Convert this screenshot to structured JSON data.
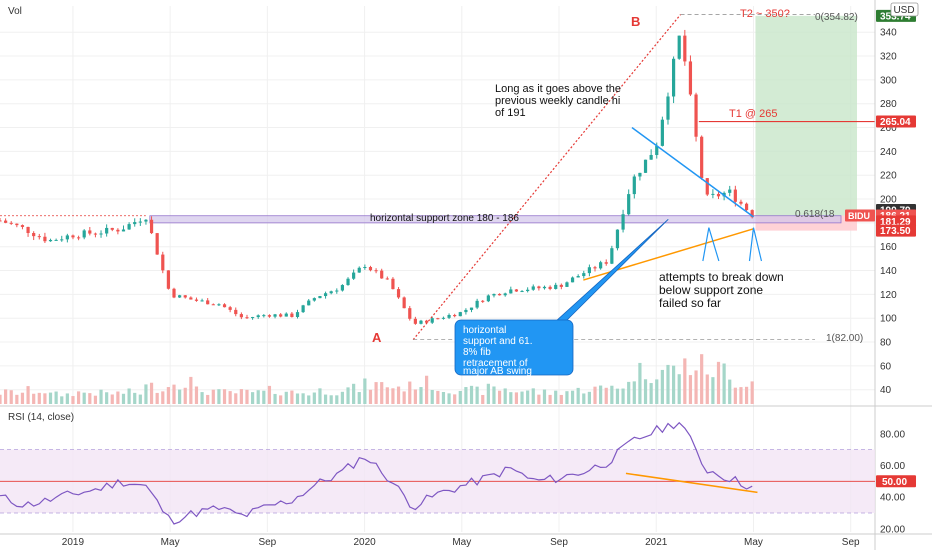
{
  "header": {
    "vol_label": "Vol",
    "currency_badge": "USD"
  },
  "colors": {
    "up": "#26a69a",
    "down": "#ef5350",
    "rsi": "#7e57c2",
    "rsi_band": "#f3e5f5",
    "target_zone": "#c8e6c9",
    "stop_zone": "#ffcdd2",
    "trend": "#2196f3",
    "orange": "#ff9800",
    "support_zone": "#d1c4e9",
    "red_line": "#e53935",
    "symbol_tag": "#ef5350",
    "price_tag": "#333333",
    "callout_bg": "#2196f3"
  },
  "chart_data": [
    {
      "type": "candlestick",
      "symbol": "BIDU",
      "x_axis": {
        "tick_labels": [
          "2019",
          "May",
          "Sep",
          "2020",
          "May",
          "Sep",
          "2021",
          "May",
          "Sep"
        ],
        "tick_dates": [
          "2019-01",
          "2019-05",
          "2019-09",
          "2020-01",
          "2020-05",
          "2020-09",
          "2021-01",
          "2021-05",
          "2021-09"
        ],
        "range": [
          "2018-10",
          "2021-10"
        ]
      },
      "y_axis": {
        "ticks": [
          40,
          60,
          80,
          100,
          120,
          140,
          160,
          180,
          200,
          220,
          240,
          260,
          280,
          300,
          320,
          340
        ],
        "ylim": [
          28,
          362
        ]
      },
      "price_path": [
        [
          "2018-10",
          182
        ],
        [
          "2018-11",
          175
        ],
        [
          "2018-12",
          165
        ],
        [
          "2019-01",
          170
        ],
        [
          "2019-02",
          172
        ],
        [
          "2019-03",
          175
        ],
        [
          "2019-04",
          186
        ],
        [
          "2019-05",
          120
        ],
        [
          "2019-06",
          115
        ],
        [
          "2019-07",
          112
        ],
        [
          "2019-08",
          100
        ],
        [
          "2019-09",
          103
        ],
        [
          "2019-10",
          102
        ],
        [
          "2019-11",
          118
        ],
        [
          "2019-12",
          126
        ],
        [
          "2020-01",
          145
        ],
        [
          "2020-02",
          130
        ],
        [
          "2020-03",
          95
        ],
        [
          "2020-04",
          100
        ],
        [
          "2020-05",
          105
        ],
        [
          "2020-06",
          118
        ],
        [
          "2020-07",
          124
        ],
        [
          "2020-08",
          125
        ],
        [
          "2020-09",
          127
        ],
        [
          "2020-10",
          138
        ],
        [
          "2020-11",
          148
        ],
        [
          "2020-12",
          215
        ],
        [
          "2021-01",
          245
        ],
        [
          "2021-02",
          340
        ],
        [
          "2021-03",
          200
        ],
        [
          "2021-04",
          206
        ],
        [
          "2021-05",
          186
        ]
      ],
      "volume_relative": [
        0.3,
        0.35,
        0.25,
        0.3,
        0.28,
        0.3,
        0.45,
        0.6,
        0.35,
        0.3,
        0.3,
        0.35,
        0.3,
        0.35,
        0.4,
        0.5,
        0.45,
        0.55,
        0.4,
        0.35,
        0.4,
        0.35,
        0.3,
        0.35,
        0.4,
        0.5,
        0.85,
        0.9,
        1.0,
        0.9,
        0.6,
        0.5
      ],
      "price_tags": [
        {
          "label": "353.74",
          "price": 353.74,
          "color": "#2e7d32"
        },
        {
          "label": "265.04",
          "price": 265.04,
          "color": "#e53935"
        },
        {
          "label": "190.79",
          "price": 190.79,
          "color": "#333333"
        },
        {
          "label": "186.22",
          "price": 186.22,
          "color": "#e53935"
        },
        {
          "label": "186.21",
          "price": 186.21,
          "color": "#ef5350"
        },
        {
          "label": "181.29",
          "price": 181.29,
          "color": "#e53935"
        },
        {
          "label": "173.50",
          "price": 173.5,
          "color": "#e53935"
        }
      ],
      "symbol_tag": "BIDU",
      "levels": [
        {
          "label": "0(354.82)",
          "price": 354.82
        },
        {
          "label": "0.618(18",
          "price": 186.21
        },
        {
          "label": "1(82.00)",
          "price": 82.0
        }
      ],
      "annotations": {
        "point_a": "A",
        "point_b": "B",
        "t2": "T2  ~ 350?",
        "t1": "T1 @ 265",
        "note_top": [
          "Long as it goes above the",
          "previous weekly candle hi",
          "of 191"
        ],
        "support_zone": "horizontal support zone 180 - 186",
        "note_bottom": [
          "attempts to break down",
          "below support zone",
          "failed so far"
        ],
        "callout": [
          "horizontal",
          "support and 61.",
          "8% fib",
          "retracement of",
          "major AB swing"
        ]
      }
    },
    {
      "type": "line",
      "title": "RSI (14, close)",
      "y_axis": {
        "ticks": [
          20,
          40,
          60,
          80
        ],
        "ylim": [
          18,
          95
        ]
      },
      "bands": [
        30,
        70
      ],
      "current_label": "50.00",
      "current": 50,
      "rsi_path": [
        [
          "2018-10",
          40
        ],
        [
          "2018-11",
          35
        ],
        [
          "2018-12",
          38
        ],
        [
          "2019-01",
          42
        ],
        [
          "2019-02",
          45
        ],
        [
          "2019-03",
          50
        ],
        [
          "2019-04",
          47
        ],
        [
          "2019-05",
          25
        ],
        [
          "2019-06",
          30
        ],
        [
          "2019-07",
          33
        ],
        [
          "2019-08",
          28
        ],
        [
          "2019-09",
          34
        ],
        [
          "2019-10",
          38
        ],
        [
          "2019-11",
          48
        ],
        [
          "2019-12",
          55
        ],
        [
          "2020-01",
          66
        ],
        [
          "2020-02",
          52
        ],
        [
          "2020-03",
          34
        ],
        [
          "2020-04",
          42
        ],
        [
          "2020-05",
          47
        ],
        [
          "2020-06",
          52
        ],
        [
          "2020-07",
          58
        ],
        [
          "2020-08",
          50
        ],
        [
          "2020-09",
          52
        ],
        [
          "2020-10",
          56
        ],
        [
          "2020-11",
          62
        ],
        [
          "2020-12",
          75
        ],
        [
          "2021-01",
          82
        ],
        [
          "2021-02",
          88
        ],
        [
          "2021-03",
          58
        ],
        [
          "2021-04",
          52
        ],
        [
          "2021-05",
          46
        ]
      ]
    }
  ]
}
